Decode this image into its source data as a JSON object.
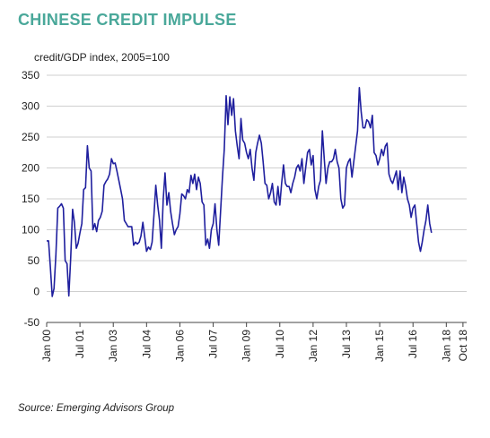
{
  "title": "CHINESE CREDIT IMPULSE",
  "source": "Source: Emerging Advisors Group",
  "colors": {
    "title": "#4aa89a",
    "line": "#1f1f9e",
    "grid": "#cfcfcf",
    "axis": "#444444"
  },
  "chart_data": {
    "type": "line",
    "title": "CHINESE CREDIT IMPULSE",
    "ylabel": "credit/GDP index, 2005=100",
    "xlabel": "",
    "ylim": [
      -50,
      350
    ],
    "y_ticks": [
      -50,
      0,
      50,
      100,
      150,
      200,
      250,
      300,
      350
    ],
    "x_range": [
      "2000-01",
      "2018-12"
    ],
    "x_ticks": [
      {
        "label": "Jan 00",
        "date": "2000-01"
      },
      {
        "label": "Jul 01",
        "date": "2001-07"
      },
      {
        "label": "Jan 03",
        "date": "2003-01"
      },
      {
        "label": "Jul 04",
        "date": "2004-07"
      },
      {
        "label": "Jan 06",
        "date": "2006-01"
      },
      {
        "label": "Jul 07",
        "date": "2007-07"
      },
      {
        "label": "Jan 09",
        "date": "2009-01"
      },
      {
        "label": "Jul 10",
        "date": "2010-07"
      },
      {
        "label": "Jan 12",
        "date": "2012-01"
      },
      {
        "label": "Jul 13",
        "date": "2013-07"
      },
      {
        "label": "Jan 15",
        "date": "2015-01"
      },
      {
        "label": "Jul 16",
        "date": "2016-07"
      },
      {
        "label": "Jan 18",
        "date": "2018-01"
      },
      {
        "label": "Oct 18",
        "date": "2018-10"
      }
    ],
    "grid": true,
    "series": [
      {
        "points": [
          [
            "2000-01",
            82
          ],
          [
            "2000-02",
            82
          ],
          [
            "2000-03",
            40
          ],
          [
            "2000-04",
            -8
          ],
          [
            "2000-05",
            5
          ],
          [
            "2000-06",
            60
          ],
          [
            "2000-07",
            135
          ],
          [
            "2000-08",
            138
          ],
          [
            "2000-09",
            142
          ],
          [
            "2000-10",
            135
          ],
          [
            "2000-11",
            50
          ],
          [
            "2000-12",
            45
          ],
          [
            "2001-01",
            -7
          ],
          [
            "2001-02",
            55
          ],
          [
            "2001-03",
            133
          ],
          [
            "2001-04",
            112
          ],
          [
            "2001-05",
            70
          ],
          [
            "2001-06",
            78
          ],
          [
            "2001-07",
            95
          ],
          [
            "2001-08",
            110
          ],
          [
            "2001-09",
            165
          ],
          [
            "2001-10",
            168
          ],
          [
            "2001-11",
            236
          ],
          [
            "2001-12",
            200
          ],
          [
            "2002-01",
            195
          ],
          [
            "2002-02",
            100
          ],
          [
            "2002-03",
            110
          ],
          [
            "2002-04",
            97
          ],
          [
            "2002-05",
            115
          ],
          [
            "2002-06",
            120
          ],
          [
            "2002-07",
            130
          ],
          [
            "2002-08",
            172
          ],
          [
            "2002-09",
            178
          ],
          [
            "2002-10",
            182
          ],
          [
            "2002-11",
            190
          ],
          [
            "2002-12",
            215
          ],
          [
            "2003-01",
            207
          ],
          [
            "2003-02",
            208
          ],
          [
            "2003-03",
            195
          ],
          [
            "2003-04",
            180
          ],
          [
            "2003-05",
            165
          ],
          [
            "2003-06",
            150
          ],
          [
            "2003-07",
            115
          ],
          [
            "2003-08",
            110
          ],
          [
            "2003-09",
            105
          ],
          [
            "2003-10",
            105
          ],
          [
            "2003-11",
            105
          ],
          [
            "2003-12",
            75
          ],
          [
            "2004-01",
            80
          ],
          [
            "2004-02",
            77
          ],
          [
            "2004-03",
            80
          ],
          [
            "2004-04",
            90
          ],
          [
            "2004-05",
            112
          ],
          [
            "2004-06",
            88
          ],
          [
            "2004-07",
            65
          ],
          [
            "2004-08",
            72
          ],
          [
            "2004-09",
            68
          ],
          [
            "2004-10",
            80
          ],
          [
            "2004-11",
            125
          ],
          [
            "2004-12",
            172
          ],
          [
            "2005-01",
            140
          ],
          [
            "2005-02",
            115
          ],
          [
            "2005-03",
            70
          ],
          [
            "2005-04",
            150
          ],
          [
            "2005-05",
            192
          ],
          [
            "2005-06",
            140
          ],
          [
            "2005-07",
            160
          ],
          [
            "2005-08",
            130
          ],
          [
            "2005-09",
            110
          ],
          [
            "2005-10",
            92
          ],
          [
            "2005-11",
            100
          ],
          [
            "2005-12",
            105
          ],
          [
            "2006-01",
            125
          ],
          [
            "2006-02",
            158
          ],
          [
            "2006-03",
            155
          ],
          [
            "2006-04",
            150
          ],
          [
            "2006-05",
            165
          ],
          [
            "2006-06",
            160
          ],
          [
            "2006-07",
            188
          ],
          [
            "2006-08",
            175
          ],
          [
            "2006-09",
            190
          ],
          [
            "2006-10",
            165
          ],
          [
            "2006-11",
            185
          ],
          [
            "2006-12",
            175
          ],
          [
            "2007-01",
            145
          ],
          [
            "2007-02",
            140
          ],
          [
            "2007-03",
            75
          ],
          [
            "2007-04",
            85
          ],
          [
            "2007-05",
            70
          ],
          [
            "2007-06",
            100
          ],
          [
            "2007-07",
            110
          ],
          [
            "2007-08",
            142
          ],
          [
            "2007-09",
            100
          ],
          [
            "2007-10",
            75
          ],
          [
            "2007-11",
            130
          ],
          [
            "2007-12",
            185
          ],
          [
            "2008-01",
            230
          ],
          [
            "2008-02",
            317
          ],
          [
            "2008-03",
            270
          ],
          [
            "2008-04",
            315
          ],
          [
            "2008-05",
            285
          ],
          [
            "2008-06",
            312
          ],
          [
            "2008-07",
            260
          ],
          [
            "2008-08",
            235
          ],
          [
            "2008-09",
            215
          ],
          [
            "2008-10",
            280
          ],
          [
            "2008-11",
            245
          ],
          [
            "2008-12",
            240
          ],
          [
            "2009-01",
            225
          ],
          [
            "2009-02",
            215
          ],
          [
            "2009-03",
            230
          ],
          [
            "2009-04",
            200
          ],
          [
            "2009-05",
            180
          ],
          [
            "2009-06",
            225
          ],
          [
            "2009-07",
            240
          ],
          [
            "2009-08",
            253
          ],
          [
            "2009-09",
            240
          ],
          [
            "2009-10",
            210
          ],
          [
            "2009-11",
            175
          ],
          [
            "2009-12",
            172
          ],
          [
            "2010-01",
            150
          ],
          [
            "2010-02",
            160
          ],
          [
            "2010-03",
            175
          ],
          [
            "2010-04",
            145
          ],
          [
            "2010-05",
            140
          ],
          [
            "2010-06",
            170
          ],
          [
            "2010-07",
            140
          ],
          [
            "2010-08",
            175
          ],
          [
            "2010-09",
            205
          ],
          [
            "2010-10",
            175
          ],
          [
            "2010-11",
            170
          ],
          [
            "2010-12",
            170
          ],
          [
            "2011-01",
            160
          ],
          [
            "2011-02",
            175
          ],
          [
            "2011-03",
            185
          ],
          [
            "2011-04",
            200
          ],
          [
            "2011-05",
            205
          ],
          [
            "2011-06",
            195
          ],
          [
            "2011-07",
            215
          ],
          [
            "2011-08",
            175
          ],
          [
            "2011-09",
            200
          ],
          [
            "2011-10",
            225
          ],
          [
            "2011-11",
            230
          ],
          [
            "2011-12",
            205
          ],
          [
            "2012-01",
            220
          ],
          [
            "2012-02",
            165
          ],
          [
            "2012-03",
            150
          ],
          [
            "2012-04",
            170
          ],
          [
            "2012-05",
            180
          ],
          [
            "2012-06",
            260
          ],
          [
            "2012-07",
            215
          ],
          [
            "2012-08",
            175
          ],
          [
            "2012-09",
            200
          ],
          [
            "2012-10",
            210
          ],
          [
            "2012-11",
            210
          ],
          [
            "2012-12",
            215
          ],
          [
            "2013-01",
            230
          ],
          [
            "2013-02",
            210
          ],
          [
            "2013-03",
            200
          ],
          [
            "2013-04",
            150
          ],
          [
            "2013-05",
            135
          ],
          [
            "2013-06",
            140
          ],
          [
            "2013-07",
            200
          ],
          [
            "2013-08",
            210
          ],
          [
            "2013-09",
            215
          ],
          [
            "2013-10",
            185
          ],
          [
            "2013-11",
            210
          ],
          [
            "2013-12",
            235
          ],
          [
            "2014-01",
            260
          ],
          [
            "2014-02",
            330
          ],
          [
            "2014-03",
            290
          ],
          [
            "2014-04",
            265
          ],
          [
            "2014-05",
            265
          ],
          [
            "2014-06",
            278
          ],
          [
            "2014-07",
            275
          ],
          [
            "2014-08",
            265
          ],
          [
            "2014-09",
            285
          ],
          [
            "2014-10",
            225
          ],
          [
            "2014-11",
            220
          ],
          [
            "2014-12",
            205
          ],
          [
            "2015-01",
            215
          ],
          [
            "2015-02",
            230
          ],
          [
            "2015-03",
            220
          ],
          [
            "2015-04",
            235
          ],
          [
            "2015-05",
            240
          ],
          [
            "2015-06",
            190
          ],
          [
            "2015-07",
            180
          ],
          [
            "2015-08",
            175
          ],
          [
            "2015-09",
            185
          ],
          [
            "2015-10",
            195
          ],
          [
            "2015-11",
            165
          ],
          [
            "2015-12",
            195
          ],
          [
            "2016-01",
            160
          ],
          [
            "2016-02",
            185
          ],
          [
            "2016-03",
            170
          ],
          [
            "2016-04",
            150
          ],
          [
            "2016-05",
            140
          ],
          [
            "2016-06",
            120
          ],
          [
            "2016-07",
            135
          ],
          [
            "2016-08",
            140
          ],
          [
            "2016-09",
            110
          ],
          [
            "2016-10",
            80
          ],
          [
            "2016-11",
            65
          ],
          [
            "2016-12",
            80
          ],
          [
            "2017-01",
            100
          ],
          [
            "2017-02",
            115
          ],
          [
            "2017-03",
            140
          ],
          [
            "2017-04",
            110
          ],
          [
            "2017-05",
            95
          ]
        ]
      }
    ]
  }
}
